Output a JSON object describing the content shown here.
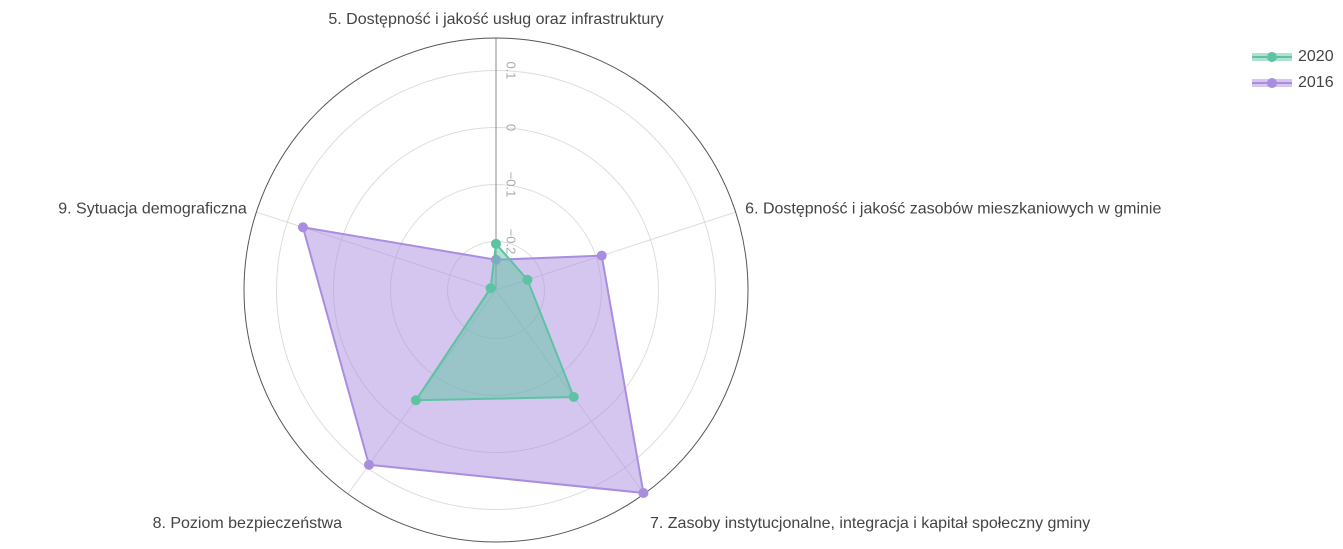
{
  "chart_data": {
    "type": "radar",
    "categories": [
      "5. Dostępność i jakość usług oraz infrastruktury",
      "6. Dostępność i jakość zasobów mieszkaniowych w gminie",
      "7. Zasoby instytucjonalne, integracja i kapitał społeczny gminy",
      "8. Poziom bezpieczeństwa",
      "9. Sytuacja demograficzna"
    ],
    "series": [
      {
        "name": "2016",
        "color": "#a98ee0",
        "values": [
          -0.232,
          -0.09,
          0.155,
          0.094,
          0.071
        ]
      },
      {
        "name": "2020",
        "color": "#5ec3a3",
        "values": [
          -0.204,
          -0.227,
          -0.053,
          -0.046,
          -0.275
        ]
      }
    ],
    "ylim": [
      -0.285,
      0.157
    ],
    "yticks": [
      {
        "value": -0.2,
        "label": "−0.2"
      },
      {
        "value": -0.1,
        "label": "−0.1"
      },
      0,
      0.1
    ],
    "legend": "top-right",
    "grid": true
  }
}
